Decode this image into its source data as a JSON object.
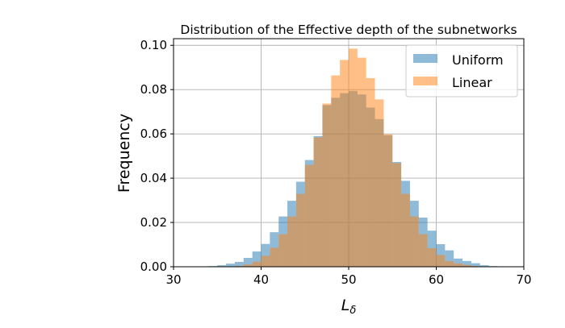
{
  "chart_data": {
    "type": "bar",
    "histogram": true,
    "title": "Distribution of the Effective depth of the subnetworks",
    "xlabel": "L_δ",
    "xlabel_main": "L",
    "xlabel_sub": "δ",
    "ylabel": "Frequency",
    "xlim": [
      30,
      70
    ],
    "ylim": [
      0,
      0.103
    ],
    "xticks": [
      "30",
      "40",
      "50",
      "60",
      "70"
    ],
    "yticks": [
      "0.00",
      "0.02",
      "0.04",
      "0.06",
      "0.08",
      "0.10"
    ],
    "grid": true,
    "legend_position": "top-right",
    "bin_width": 1,
    "series": [
      {
        "name": "Uniform",
        "color": "#1f77b4",
        "alpha": 0.5,
        "bin_start": 34,
        "values": [
          0.0003,
          0.0007,
          0.0014,
          0.0022,
          0.004,
          0.0069,
          0.0103,
          0.0156,
          0.0227,
          0.0298,
          0.0384,
          0.0482,
          0.059,
          0.073,
          0.0763,
          0.0784,
          0.0794,
          0.0778,
          0.0719,
          0.0667,
          0.0594,
          0.0473,
          0.0388,
          0.0298,
          0.0222,
          0.0163,
          0.0102,
          0.0074,
          0.0037,
          0.0026,
          0.0016,
          0.0007,
          0.0003
        ]
      },
      {
        "name": "Linear",
        "color": "#ff7f0e",
        "alpha": 0.5,
        "bin_start": 37,
        "values": [
          0.0004,
          0.001,
          0.0023,
          0.0049,
          0.0086,
          0.0147,
          0.0227,
          0.0329,
          0.046,
          0.0584,
          0.0737,
          0.0864,
          0.0934,
          0.0985,
          0.0944,
          0.0852,
          0.0756,
          0.0598,
          0.0468,
          0.0329,
          0.0227,
          0.0147,
          0.0084,
          0.0053,
          0.0026,
          0.0015,
          0.0008,
          0.0003
        ]
      }
    ]
  }
}
